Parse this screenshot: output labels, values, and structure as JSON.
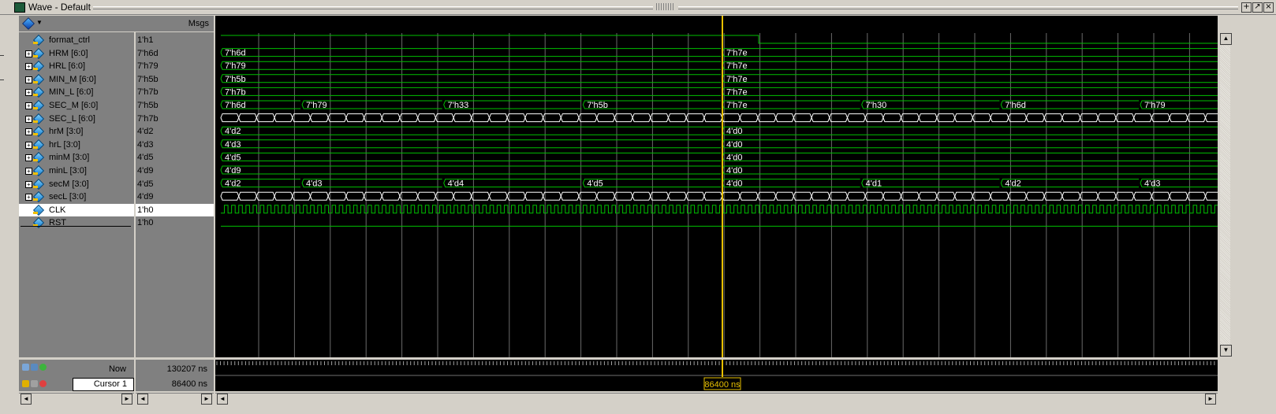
{
  "window": {
    "title": "Wave - Default",
    "controls": [
      "+",
      "↗",
      "×"
    ]
  },
  "header": {
    "msgs_label": "Msgs"
  },
  "signals": [
    {
      "name": "format_ctrl",
      "value": "1'h1",
      "expandable": false,
      "type": "scalar"
    },
    {
      "name": "HRM [6:0]",
      "value": "7'h6d",
      "expandable": true,
      "type": "bus",
      "segments": [
        {
          "t": 0,
          "label": "7'h6d"
        },
        {
          "t": 86400,
          "label": "7'h7e"
        }
      ]
    },
    {
      "name": "HRL [6:0]",
      "value": "7'h79",
      "expandable": true,
      "type": "bus",
      "segments": [
        {
          "t": 0,
          "label": "7'h79"
        },
        {
          "t": 86400,
          "label": "7'h7e"
        }
      ]
    },
    {
      "name": "MIN_M [6:0]",
      "value": "7'h5b",
      "expandable": true,
      "type": "bus",
      "segments": [
        {
          "t": 0,
          "label": "7'h5b"
        },
        {
          "t": 86400,
          "label": "7'h7e"
        }
      ]
    },
    {
      "name": "MIN_L [6:0]",
      "value": "7'h7b",
      "expandable": true,
      "type": "bus",
      "segments": [
        {
          "t": 0,
          "label": "7'h7b"
        },
        {
          "t": 86400,
          "label": "7'h7e"
        }
      ]
    },
    {
      "name": "SEC_M [6:0]",
      "value": "7'h5b",
      "expandable": true,
      "type": "bus",
      "segments": [
        {
          "t": 0,
          "label": "7'h6d"
        },
        {
          "t": 14000,
          "label": "7'h79"
        },
        {
          "t": 38400,
          "label": "7'h33"
        },
        {
          "t": 62400,
          "label": "7'h5b"
        },
        {
          "t": 86400,
          "label": "7'h7e"
        },
        {
          "t": 110400,
          "label": "7'h30"
        },
        {
          "t": 134400,
          "label": "7'h6d"
        },
        {
          "t": 158400,
          "label": "7'h79"
        }
      ]
    },
    {
      "name": "SEC_L [6:0]",
      "value": "7'h7b",
      "expandable": true,
      "type": "busfast"
    },
    {
      "name": "hrM [3:0]",
      "value": "4'd2",
      "expandable": true,
      "type": "bus",
      "segments": [
        {
          "t": 0,
          "label": "4'd2"
        },
        {
          "t": 86400,
          "label": "4'd0"
        }
      ]
    },
    {
      "name": "hrL [3:0]",
      "value": "4'd3",
      "expandable": true,
      "type": "bus",
      "segments": [
        {
          "t": 0,
          "label": "4'd3"
        },
        {
          "t": 86400,
          "label": "4'd0"
        }
      ]
    },
    {
      "name": "minM [3:0]",
      "value": "4'd5",
      "expandable": true,
      "type": "bus",
      "segments": [
        {
          "t": 0,
          "label": "4'd5"
        },
        {
          "t": 86400,
          "label": "4'd0"
        }
      ]
    },
    {
      "name": "minL [3:0]",
      "value": "4'd9",
      "expandable": true,
      "type": "bus",
      "segments": [
        {
          "t": 0,
          "label": "4'd9"
        },
        {
          "t": 86400,
          "label": "4'd0"
        }
      ]
    },
    {
      "name": "secM [3:0]",
      "value": "4'd5",
      "expandable": true,
      "type": "bus",
      "segments": [
        {
          "t": 0,
          "label": "4'd2"
        },
        {
          "t": 14000,
          "label": "4'd3"
        },
        {
          "t": 38400,
          "label": "4'd4"
        },
        {
          "t": 62400,
          "label": "4'd5"
        },
        {
          "t": 86400,
          "label": "4'd0"
        },
        {
          "t": 110400,
          "label": "4'd1"
        },
        {
          "t": 134400,
          "label": "4'd2"
        },
        {
          "t": 158400,
          "label": "4'd3"
        }
      ]
    },
    {
      "name": "secL [3:0]",
      "value": "4'd9",
      "expandable": true,
      "type": "busfast"
    },
    {
      "name": "CLK",
      "value": "1'h0",
      "expandable": false,
      "type": "clock",
      "selected": true
    },
    {
      "name": "RST",
      "value": "1'h0",
      "expandable": false,
      "type": "low"
    }
  ],
  "status": {
    "now_label": "Now",
    "now_value": "130207 ns",
    "cursor_label": "Cursor 1",
    "cursor_value": "86400 ns",
    "cursor_marker": "86400 ns",
    "cursor_time": 86400
  },
  "colors": {
    "wave": "#00c000",
    "bus_text": "#ffffff",
    "cursor": "#e8c000",
    "grid": "#6a6a6a",
    "background": "#000000"
  }
}
